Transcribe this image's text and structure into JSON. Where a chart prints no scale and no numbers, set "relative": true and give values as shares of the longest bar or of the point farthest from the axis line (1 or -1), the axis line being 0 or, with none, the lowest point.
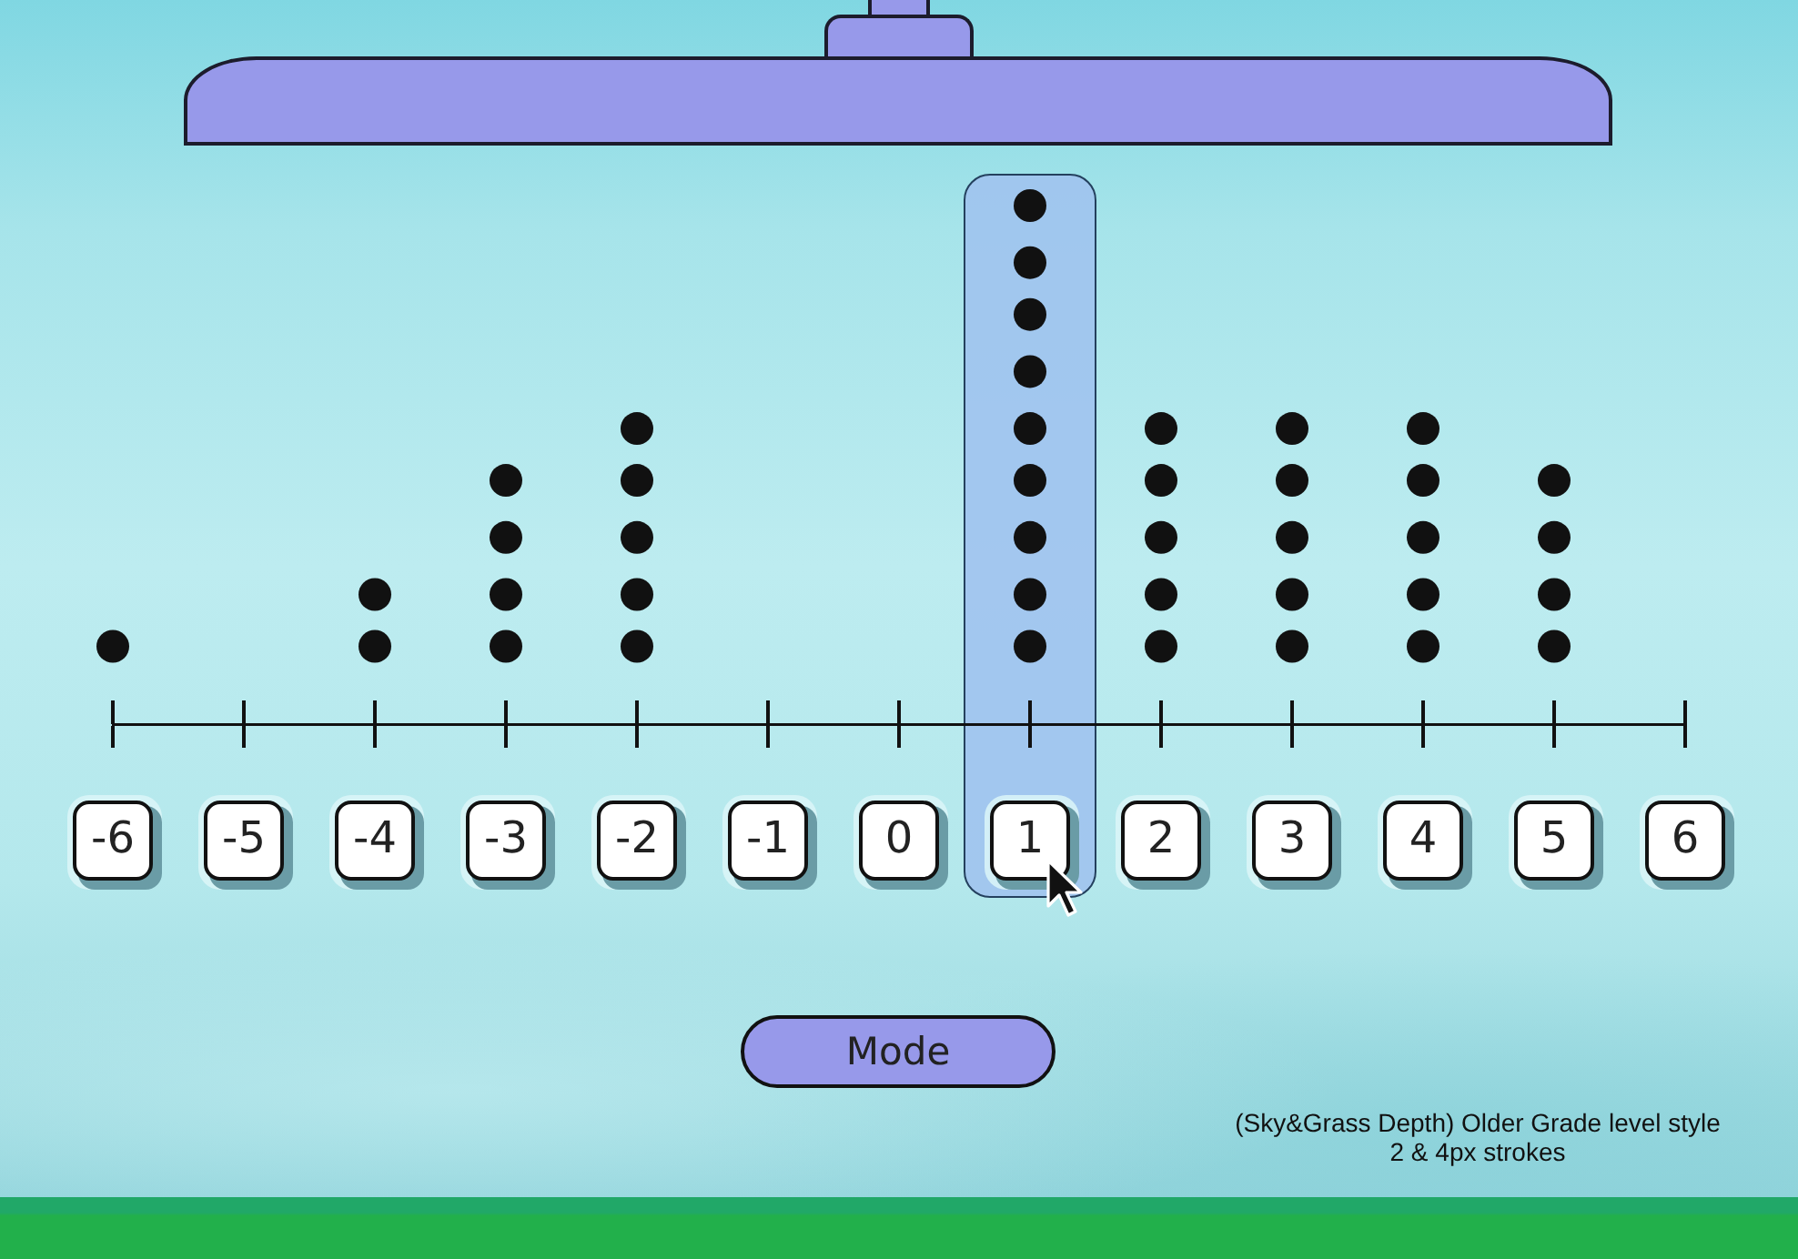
{
  "chart_data": {
    "type": "scatter",
    "relative": true,
    "x": [
      -6,
      -4,
      -4,
      -3,
      -3,
      -3,
      -3,
      -2,
      -2,
      -2,
      -2,
      -2,
      1,
      1,
      1,
      1,
      1,
      1,
      1,
      1,
      1,
      2,
      2,
      2,
      2,
      2,
      3,
      3,
      3,
      3,
      3,
      4,
      4,
      4,
      4,
      4,
      5,
      5,
      5,
      5
    ],
    "values": [
      0.15,
      0.15,
      0.25,
      0.15,
      0.25,
      0.36,
      0.47,
      0.15,
      0.25,
      0.36,
      0.47,
      0.57,
      0.15,
      0.25,
      0.36,
      0.47,
      0.57,
      0.68,
      0.79,
      0.89,
      1,
      0.15,
      0.25,
      0.36,
      0.47,
      0.57,
      0.15,
      0.25,
      0.36,
      0.47,
      0.57,
      0.15,
      0.25,
      0.36,
      0.47,
      0.57,
      0.15,
      0.25,
      0.36,
      0.47
    ],
    "color": "#111111",
    "marker": "circle",
    "xlim": [
      -6,
      6
    ],
    "xticks": [
      -6,
      -5,
      -4,
      -3,
      -2,
      -1,
      0,
      1,
      2,
      3,
      4,
      5,
      6
    ],
    "bands": [
      {
        "axis": "x",
        "from": 0.5,
        "to": 1.5,
        "color": "#a0c3ee"
      }
    ],
    "annotations": [
      "Mode",
      "(Sky&Grass Depth) Older Grade level style",
      "2 & 4px strokes"
    ]
  }
}
